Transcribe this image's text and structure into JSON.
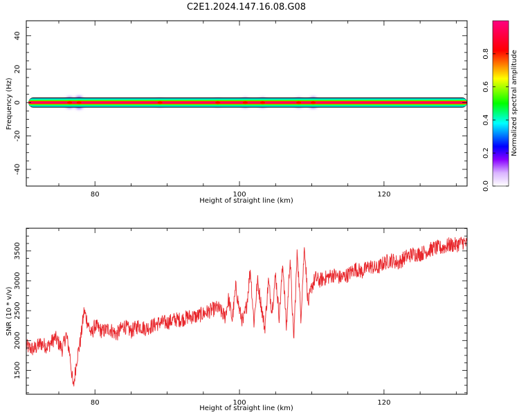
{
  "title": "C2E1.2024.147.16.08.G08",
  "chart_data": [
    {
      "type": "heatmap",
      "title": "",
      "xlabel": "Height of straight line (km)",
      "ylabel": "Frequency (Hz)",
      "xlim": [
        70.5,
        131.5
      ],
      "ylim": [
        -50,
        49
      ],
      "x_ticks": [
        80,
        100,
        120
      ],
      "y_ticks": [
        -40,
        -20,
        0,
        20,
        40
      ],
      "colorbar": {
        "label": "Normalized spectral amplitude",
        "range": [
          0,
          1
        ],
        "ticks": [
          0.0,
          0.2,
          0.4,
          0.6,
          0.8
        ],
        "colors": [
          "#ffffff",
          "#8800ff",
          "#0000ff",
          "#00ffff",
          "#00ff00",
          "#ffff00",
          "#ff0000",
          "#ff0080"
        ]
      },
      "band": {
        "center_hz": 0,
        "core_halfwidth_hz": 0.6,
        "halo_halfwidth_hz": 2.5
      },
      "blobs": [
        {
          "x": 76.5,
          "amp": 0.3,
          "spread_hz": 3
        },
        {
          "x": 77.8,
          "amp": 0.25,
          "spread_hz": 3.5
        },
        {
          "x": 89.0,
          "amp": 0.45,
          "spread_hz": 2
        },
        {
          "x": 97.0,
          "amp": 0.4,
          "spread_hz": 2
        },
        {
          "x": 100.8,
          "amp": 0.4,
          "spread_hz": 2.5
        },
        {
          "x": 103.2,
          "amp": 0.35,
          "spread_hz": 2.5
        },
        {
          "x": 108.2,
          "amp": 0.4,
          "spread_hz": 2.5
        },
        {
          "x": 110.2,
          "amp": 0.35,
          "spread_hz": 3
        }
      ]
    },
    {
      "type": "line",
      "title": "",
      "xlabel": "Height of straight line (km)",
      "ylabel": "SNR (10 * v/v)",
      "xlim": [
        70.5,
        131.5
      ],
      "ylim": [
        1100,
        3880
      ],
      "x_ticks": [
        80,
        100,
        120
      ],
      "y_ticks": [
        1500,
        2000,
        2500,
        3000,
        3500
      ],
      "line_color": "#e8262b",
      "series": [
        {
          "x": [
            70.5,
            71.5,
            72.5,
            73.5,
            74.5,
            75.5,
            76.0,
            76.5,
            77.0,
            77.5,
            78.0,
            78.5,
            79.0,
            79.5,
            80.0,
            81.0,
            82.0,
            83.0,
            84.0,
            85.0,
            86.0,
            87.0,
            88.0,
            89.0,
            90.0,
            91.0,
            92.0,
            93.0,
            94.0,
            95.0,
            96.0,
            97.0,
            98.0,
            98.5,
            99.0,
            99.5,
            100.0,
            100.5,
            101.0,
            101.5,
            102.0,
            102.5,
            103.0,
            103.5,
            104.0,
            104.5,
            105.0,
            105.5,
            106.0,
            106.5,
            107.0,
            107.5,
            108.0,
            108.5,
            109.0,
            109.5,
            110.0,
            110.5,
            111.0,
            112.0,
            113.0,
            114.0,
            115.0,
            116.0,
            117.0,
            118.0,
            119.0,
            120.0,
            121.0,
            122.0,
            123.0,
            124.0,
            125.0,
            126.0,
            127.0,
            128.0,
            129.0,
            130.0,
            131.0,
            131.5
          ],
          "y": [
            1900,
            1850,
            1950,
            1900,
            2050,
            1850,
            2100,
            1800,
            1200,
            1700,
            2000,
            2500,
            2300,
            2100,
            2250,
            2150,
            2200,
            2100,
            2250,
            2150,
            2250,
            2200,
            2250,
            2300,
            2300,
            2350,
            2350,
            2400,
            2400,
            2450,
            2500,
            2550,
            2400,
            2700,
            2350,
            2900,
            2500,
            2300,
            2600,
            3200,
            2300,
            3000,
            2600,
            2200,
            3000,
            2500,
            3100,
            2400,
            3300,
            2200,
            3400,
            2000,
            3500,
            2400,
            3600,
            2600,
            2900,
            3050,
            3000,
            3050,
            3100,
            3050,
            3100,
            3200,
            3150,
            3250,
            3200,
            3300,
            3350,
            3300,
            3400,
            3450,
            3450,
            3500,
            3550,
            3550,
            3600,
            3600,
            3650,
            3600
          ]
        }
      ]
    }
  ]
}
